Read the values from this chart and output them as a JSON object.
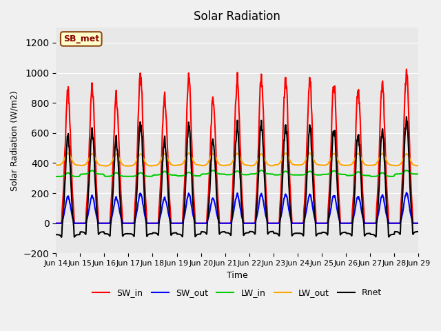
{
  "title": "Solar Radiation",
  "xlabel": "Time",
  "ylabel": "Solar Radiation (W/m2)",
  "ylim": [
    -200,
    1300
  ],
  "yticks": [
    -200,
    0,
    200,
    400,
    600,
    800,
    1000,
    1200
  ],
  "xlim_days": [
    0,
    15
  ],
  "num_days": 15,
  "points_per_day": 144,
  "series": {
    "SW_in": {
      "color": "#ff0000",
      "lw": 1.5
    },
    "SW_out": {
      "color": "#0000ff",
      "lw": 1.5
    },
    "LW_in": {
      "color": "#00cc00",
      "lw": 1.5
    },
    "LW_out": {
      "color": "#ffa500",
      "lw": 1.5
    },
    "Rnet": {
      "color": "#000000",
      "lw": 1.5
    }
  },
  "legend_label_box": "SB_met",
  "background_color": "#e8e8e8",
  "plot_bg_color": "#e8e8e8",
  "xtick_labels": [
    "Jun 14",
    "Jun 15",
    "Jun 16",
    "Jun 17",
    "Jun 18",
    "Jun 19",
    "Jun 20",
    "Jun 21",
    "Jun 22",
    "Jun 23",
    "Jun 24",
    "Jun 25",
    "Jun 26",
    "Jun 27",
    "Jun 28",
    "Jun 29"
  ],
  "xtick_positions": [
    0,
    1,
    2,
    3,
    4,
    5,
    6,
    7,
    8,
    9,
    10,
    11,
    12,
    13,
    14,
    15
  ]
}
